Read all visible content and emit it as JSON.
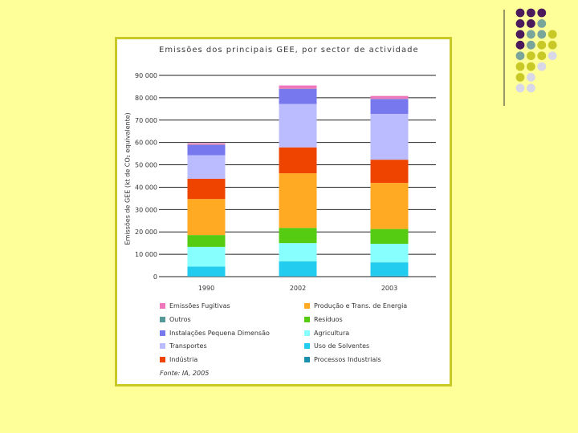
{
  "chart_data": {
    "type": "bar",
    "stacked": true,
    "title": "Emissões dos principais GEE, por sector de actividade",
    "ylabel": "Emissões de GEE (kt de CO₂ equivalente)",
    "xlabel": "",
    "categories": [
      "1990",
      "2002",
      "2003"
    ],
    "ylim": [
      0,
      90000
    ],
    "yticks": [
      0,
      10000,
      20000,
      30000,
      40000,
      50000,
      60000,
      70000,
      80000,
      90000
    ],
    "ytick_labels": [
      "0",
      "10 000",
      "20 000",
      "30 000",
      "40 000",
      "50 000",
      "60 000",
      "70 000",
      "80 000",
      "90 000"
    ],
    "grid": true,
    "legend_position": "bottom",
    "series": [
      {
        "name": "Processos Industriais",
        "color": "#1a8fae",
        "values": [
          200,
          300,
          400
        ]
      },
      {
        "name": "Uso de Solventes",
        "color": "#22ccee",
        "values": [
          4300,
          6500,
          6000
        ]
      },
      {
        "name": "Agricultura",
        "color": "#88ffff",
        "values": [
          8800,
          8200,
          8300
        ]
      },
      {
        "name": "Resíduos",
        "color": "#55cc11",
        "values": [
          5300,
          6800,
          6600
        ]
      },
      {
        "name": "Produção e Trans. de Energia",
        "color": "#ffaa22",
        "values": [
          16100,
          24400,
          20600
        ]
      },
      {
        "name": "Indústria",
        "color": "#ee4400",
        "values": [
          9100,
          11600,
          10400
        ]
      },
      {
        "name": "Transportes",
        "color": "#bbbbff",
        "values": [
          10500,
          19400,
          20500
        ]
      },
      {
        "name": "Instalações Pequena Dimensão",
        "color": "#7777ee",
        "values": [
          4600,
          6700,
          6600
        ]
      },
      {
        "name": "Outros",
        "color": "#559999",
        "values": [
          100,
          100,
          100
        ]
      },
      {
        "name": "Emissões Fugitivas",
        "color": "#ee77bb",
        "values": [
          600,
          1500,
          1300
        ]
      }
    ]
  },
  "legend": [
    {
      "name": "Emissões Fugitivas",
      "color": "#ee77bb"
    },
    {
      "name": "Produção e Trans. de Energia",
      "color": "#ffaa22"
    },
    {
      "name": "Outros",
      "color": "#559999"
    },
    {
      "name": "Resíduos",
      "color": "#55cc11"
    },
    {
      "name": "Instalações Pequena Dimensão",
      "color": "#7777ee"
    },
    {
      "name": "Agricultura",
      "color": "#88ffff"
    },
    {
      "name": "Transportes",
      "color": "#bbbbff"
    },
    {
      "name": "Uso de Solventes",
      "color": "#22ccee"
    },
    {
      "name": "Indústria",
      "color": "#ee4400"
    },
    {
      "name": "Processos Industriais",
      "color": "#1a8fae"
    }
  ],
  "source": "Fonte: IA, 2005",
  "colors": {
    "background": "#ffff99",
    "panel_border": "#c8c827",
    "dot_purple": "#4b1a5c",
    "dot_teal": "#7aa59a",
    "dot_olive": "#c8c827",
    "dot_grey": "#d8d8e8"
  }
}
